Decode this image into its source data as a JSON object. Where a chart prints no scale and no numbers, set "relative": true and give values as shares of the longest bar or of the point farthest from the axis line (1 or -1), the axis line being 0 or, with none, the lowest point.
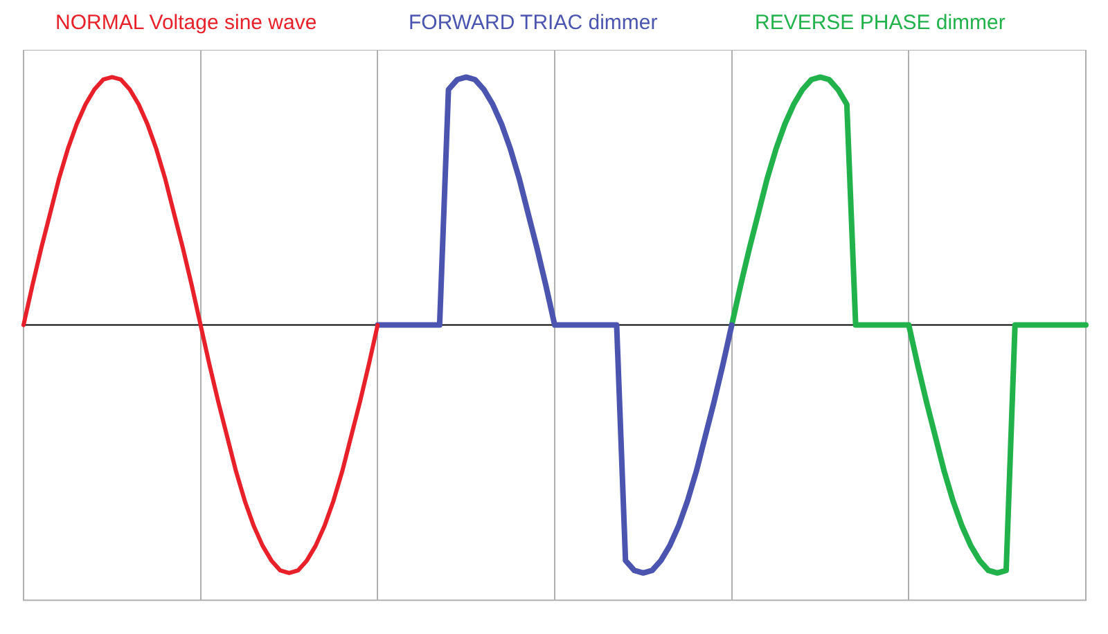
{
  "chart_data": {
    "type": "line",
    "relative": true,
    "grid": "x",
    "legend": false,
    "marker": "none",
    "line_style": "solid",
    "categories": [
      null,
      null,
      null,
      null,
      null,
      null,
      null,
      null,
      null,
      null,
      null,
      null,
      null,
      null,
      null,
      null,
      null,
      null,
      null,
      null,
      null,
      null,
      null,
      null,
      null,
      null,
      null,
      null,
      null,
      null,
      null,
      null,
      null,
      null,
      null,
      null,
      null,
      null,
      null,
      null,
      null,
      null,
      null,
      null,
      null,
      null,
      null,
      null,
      null,
      null,
      null,
      null,
      null,
      null,
      null,
      null,
      null,
      null,
      null,
      null,
      null,
      null,
      null,
      null,
      null,
      null,
      null,
      null,
      null,
      null,
      null,
      null,
      null,
      null,
      null,
      null,
      null,
      null,
      null,
      null,
      null,
      null,
      null,
      null,
      null,
      null,
      null,
      null,
      null,
      null,
      null,
      null,
      null,
      null,
      null,
      null,
      null,
      null,
      null,
      null,
      null,
      null,
      null,
      null,
      null,
      null,
      null,
      null,
      null,
      null,
      null,
      null,
      null,
      null,
      null,
      null,
      null,
      null,
      null,
      null,
      null
    ],
    "series": [
      {
        "name": "NORMAL Voltage sine wave",
        "color": "#e8202a",
        "values": [
          0,
          0.16,
          0.31,
          0.45,
          0.59,
          0.71,
          0.81,
          0.89,
          0.95,
          0.99,
          1,
          0.99,
          0.95,
          0.89,
          0.81,
          0.71,
          0.59,
          0.45,
          0.31,
          0.16,
          0,
          -0.16,
          -0.31,
          -0.45,
          -0.59,
          -0.71,
          -0.81,
          -0.89,
          -0.95,
          -0.99,
          -1,
          -0.99,
          -0.95,
          -0.89,
          -0.81,
          -0.71,
          -0.59,
          -0.45,
          -0.31,
          -0.16,
          0,
          null,
          null,
          null,
          null,
          null,
          null,
          null,
          null,
          null,
          null,
          null,
          null,
          null,
          null,
          null,
          null,
          null,
          null,
          null,
          null,
          null,
          null,
          null,
          null,
          null,
          null,
          null,
          null,
          null,
          null,
          null,
          null,
          null,
          null,
          null,
          null,
          null,
          null,
          null,
          null,
          null,
          null,
          null,
          null,
          null,
          null,
          null,
          null,
          null,
          null,
          null,
          null,
          null,
          null,
          null,
          null,
          null,
          null,
          null,
          null,
          null,
          null,
          null,
          null,
          null,
          null,
          null,
          null,
          null,
          null,
          null,
          null,
          null,
          null,
          null,
          null,
          null,
          null,
          null,
          null
        ]
      },
      {
        "name": "FORWARD TRIAC dimmer",
        "color": "#4b55b0",
        "values": [
          null,
          null,
          null,
          null,
          null,
          null,
          null,
          null,
          null,
          null,
          null,
          null,
          null,
          null,
          null,
          null,
          null,
          null,
          null,
          null,
          null,
          null,
          null,
          null,
          null,
          null,
          null,
          null,
          null,
          null,
          null,
          null,
          null,
          null,
          null,
          null,
          null,
          null,
          null,
          null,
          0,
          0,
          0,
          0,
          0,
          0,
          0,
          0,
          0.95,
          0.99,
          1,
          0.99,
          0.95,
          0.89,
          0.81,
          0.71,
          0.59,
          0.45,
          0.31,
          0.16,
          0,
          0,
          0,
          0,
          0,
          0,
          0,
          0,
          -0.95,
          -0.99,
          -1,
          -0.99,
          -0.95,
          -0.89,
          -0.81,
          -0.71,
          -0.59,
          -0.45,
          -0.31,
          -0.16,
          0,
          null,
          null,
          null,
          null,
          null,
          null,
          null,
          null,
          null,
          null,
          null,
          null,
          null,
          null,
          null,
          null,
          null,
          null,
          null,
          null,
          null,
          null,
          null,
          null,
          null,
          null,
          null,
          null,
          null,
          null,
          null,
          null,
          null,
          null,
          null,
          null,
          null,
          null,
          null,
          null
        ]
      },
      {
        "name": "REVERSE PHASE dimmer",
        "color": "#22b24c",
        "values": [
          null,
          null,
          null,
          null,
          null,
          null,
          null,
          null,
          null,
          null,
          null,
          null,
          null,
          null,
          null,
          null,
          null,
          null,
          null,
          null,
          null,
          null,
          null,
          null,
          null,
          null,
          null,
          null,
          null,
          null,
          null,
          null,
          null,
          null,
          null,
          null,
          null,
          null,
          null,
          null,
          null,
          null,
          null,
          null,
          null,
          null,
          null,
          null,
          null,
          null,
          null,
          null,
          null,
          null,
          null,
          null,
          null,
          null,
          null,
          null,
          null,
          null,
          null,
          null,
          null,
          null,
          null,
          null,
          null,
          null,
          null,
          null,
          null,
          null,
          null,
          null,
          null,
          null,
          null,
          null,
          0,
          0.16,
          0.31,
          0.45,
          0.59,
          0.71,
          0.81,
          0.89,
          0.95,
          0.99,
          1,
          0.99,
          0.95,
          0.89,
          0,
          0,
          0,
          0,
          0,
          0,
          0,
          -0.16,
          -0.31,
          -0.45,
          -0.59,
          -0.71,
          -0.81,
          -0.89,
          -0.95,
          -0.99,
          -1,
          -0.99,
          0,
          0,
          0,
          0,
          0,
          0,
          0,
          0,
          0
        ]
      }
    ]
  }
}
